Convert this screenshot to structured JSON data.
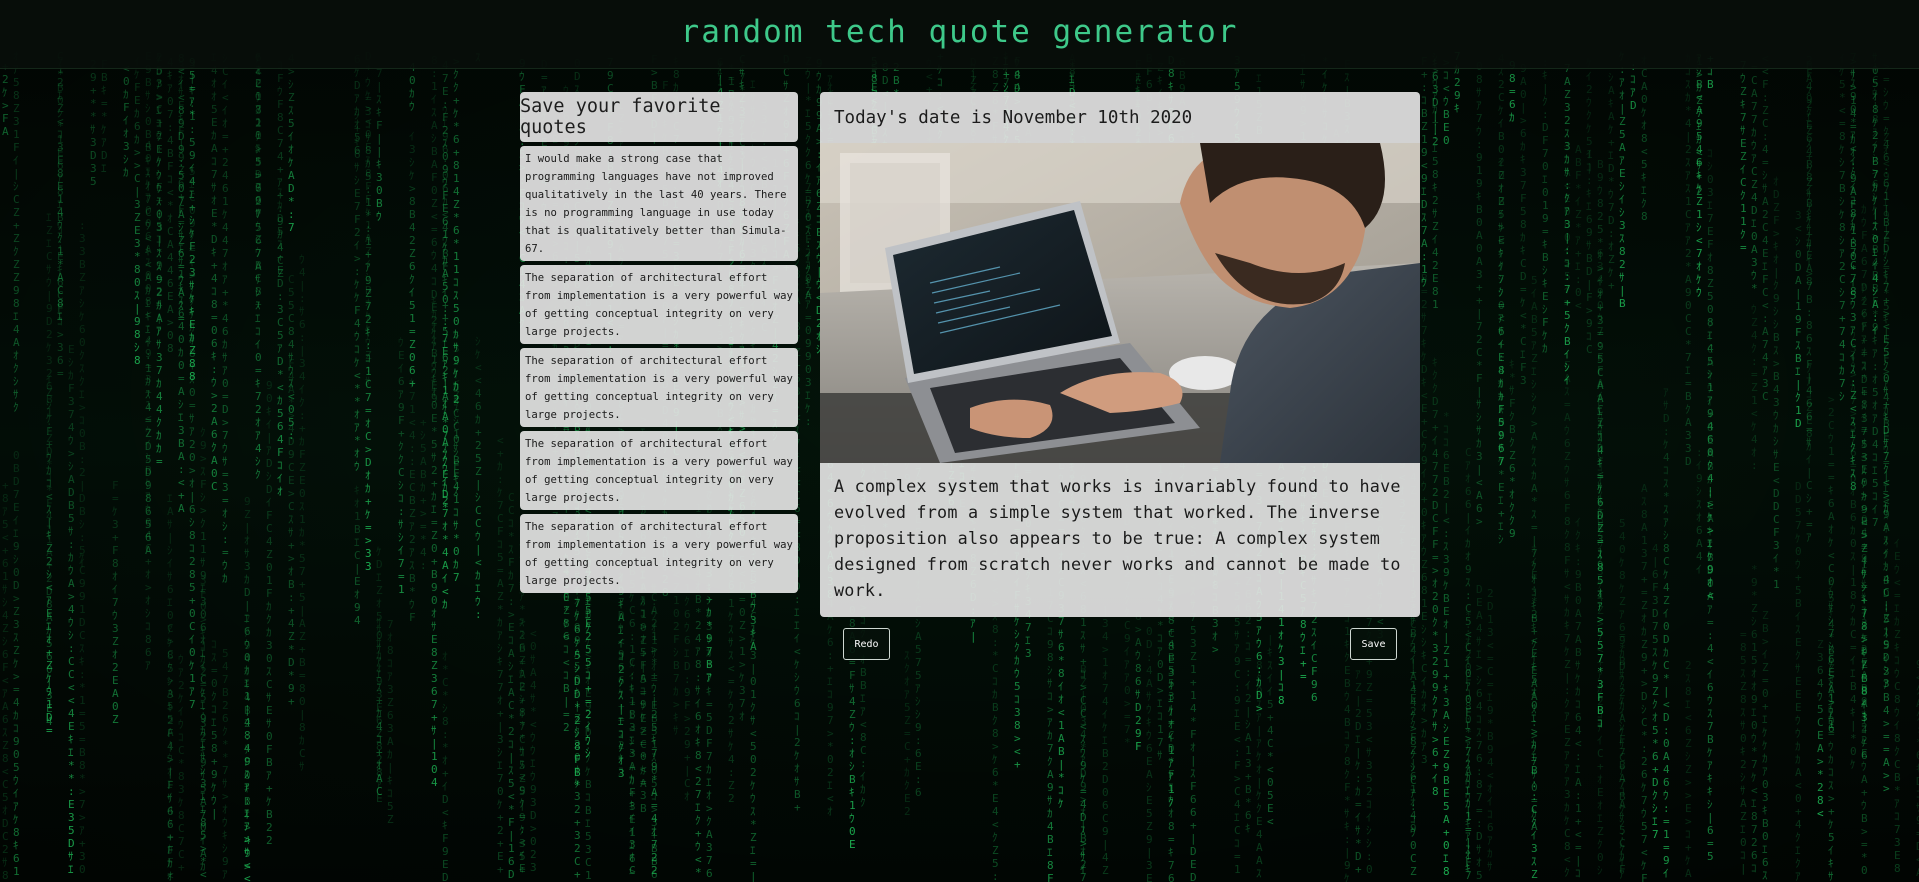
{
  "header": {
    "title": "random tech quote generator"
  },
  "favorites": {
    "heading": "Save your favorite quotes",
    "quotes": [
      "I would make a strong case that programming languages have not improved qualitatively in the last 40 years. There is no programming language in use today that is qualitatively better than Simula-67.",
      "The separation of architectural effort from implementation is a very powerful way of getting conceptual integrity on very large projects.",
      "The separation of architectural effort from implementation is a very powerful way of getting conceptual integrity on very large projects.",
      "The separation of architectural effort from implementation is a very powerful way of getting conceptual integrity on very large projects.",
      "The separation of architectural effort from implementation is a very powerful way of getting conceptual integrity on very large projects."
    ]
  },
  "main": {
    "date_text": "Today's date is November 10th 2020",
    "image_alt": "person typing code on a laptop",
    "quote": "A complex system that works is invariably found to have evolved from a simple system that worked. The inverse proposition also appears to be true: A complex system designed from scratch never works and cannot be made to work."
  },
  "actions": {
    "redo_label": "Redo",
    "save_label": "Save"
  },
  "theme": {
    "title_color": "#3ec98a",
    "rain_color": "#1fc35a",
    "card_bg": "#e2e2e2"
  }
}
